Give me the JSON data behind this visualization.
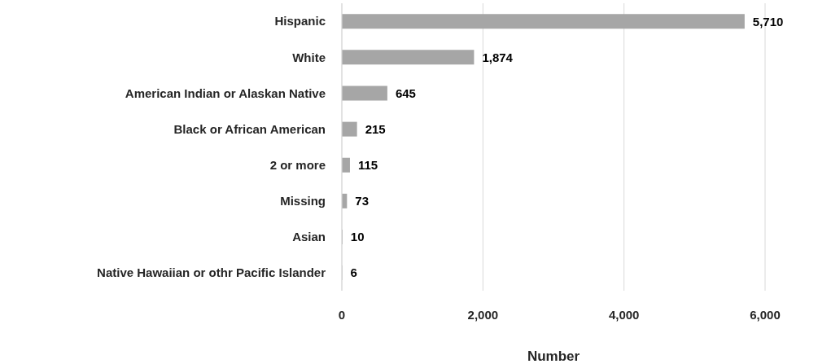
{
  "chart_data": {
    "type": "bar",
    "orientation": "horizontal",
    "xlabel": "Number",
    "categories": [
      "Hispanic",
      "White",
      "American Indian or Alaskan Native",
      "Black or African American",
      "2 or more",
      "Missing",
      "Asian",
      "Native Hawaiian or othr Pacific Islander"
    ],
    "values": [
      5710,
      1874,
      645,
      215,
      115,
      73,
      10,
      6
    ],
    "color": "#a6a6a6",
    "xlim": [
      0,
      6000
    ],
    "xticks": [
      0,
      {
        "value": 2000,
        "label": "2,000"
      },
      {
        "value": 4000,
        "label": "4,000"
      },
      {
        "value": 6000,
        "label": "6,000"
      }
    ],
    "value_labels": [
      "5,710",
      "1,874",
      "645",
      "215",
      "115",
      "73",
      "10",
      "6"
    ],
    "grid": "x"
  }
}
